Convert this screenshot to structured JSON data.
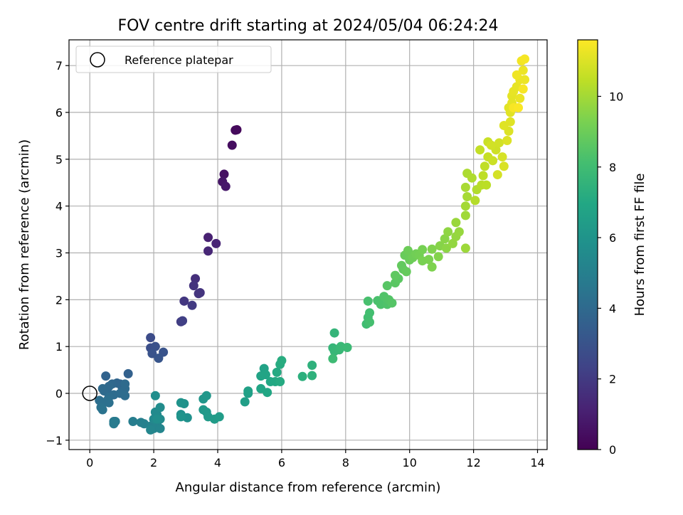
{
  "chart_data": {
    "type": "scatter",
    "title": "FOV centre drift starting at 2024/05/04 06:24:24",
    "xlabel": "Angular distance from reference (arcmin)",
    "ylabel": "Rotation from reference (arcmin)",
    "colorbar_label": "Hours from first FF file",
    "xlim": [
      -0.65,
      14.3
    ],
    "ylim": [
      -1.2,
      7.55
    ],
    "clim": [
      0,
      11.6
    ],
    "colormap": "viridis",
    "grid": true,
    "legend_position": "upper-left",
    "x_ticks": [
      0,
      2,
      4,
      6,
      8,
      10,
      12,
      14
    ],
    "x_tick_labels": [
      "0",
      "2",
      "4",
      "6",
      "8",
      "10",
      "12",
      "14"
    ],
    "y_ticks": [
      -1,
      0,
      1,
      2,
      3,
      4,
      5,
      6,
      7
    ],
    "y_tick_labels": [
      "−1",
      "0",
      "1",
      "2",
      "3",
      "4",
      "5",
      "6",
      "7"
    ],
    "colorbar_ticks": [
      0,
      2,
      4,
      6,
      8,
      10
    ],
    "colorbar_tick_labels": [
      "0",
      "2",
      "4",
      "6",
      "8",
      "10"
    ],
    "reference_point": {
      "label": "Reference platepar",
      "x": 0,
      "y": 0
    },
    "points": [
      [
        4.6,
        5.63,
        0.2
      ],
      [
        4.55,
        5.62,
        0.3
      ],
      [
        4.45,
        5.3,
        0.4
      ],
      [
        4.2,
        4.68,
        0.55
      ],
      [
        4.15,
        4.52,
        0.7
      ],
      [
        4.25,
        4.42,
        0.8
      ],
      [
        3.7,
        3.33,
        1.1
      ],
      [
        3.95,
        3.2,
        1.2
      ],
      [
        3.7,
        3.04,
        1.3
      ],
      [
        3.3,
        2.45,
        1.6
      ],
      [
        3.25,
        2.3,
        1.7
      ],
      [
        3.45,
        2.15,
        1.75
      ],
      [
        3.4,
        2.13,
        1.8
      ],
      [
        2.95,
        1.97,
        1.9
      ],
      [
        3.2,
        1.88,
        2.0
      ],
      [
        2.85,
        1.53,
        2.1
      ],
      [
        2.9,
        1.55,
        2.2
      ],
      [
        1.9,
        1.19,
        2.7
      ],
      [
        1.9,
        0.97,
        2.8
      ],
      [
        2.05,
        1.0,
        2.9
      ],
      [
        1.95,
        0.85,
        3.0
      ],
      [
        2.3,
        0.88,
        3.0
      ],
      [
        2.15,
        0.75,
        3.1
      ],
      [
        1.2,
        0.42,
        3.6
      ],
      [
        0.5,
        0.37,
        3.7
      ],
      [
        0.85,
        0.22,
        3.8
      ],
      [
        0.95,
        0.2,
        3.8
      ],
      [
        1.0,
        0.15,
        3.85
      ],
      [
        0.7,
        0.2,
        3.9
      ],
      [
        0.55,
        0.1,
        3.9
      ],
      [
        0.6,
        0.15,
        3.95
      ],
      [
        0.4,
        0.1,
        4.0
      ],
      [
        0.45,
        0.05,
        4.0
      ],
      [
        1.05,
        0.05,
        4.0
      ],
      [
        1.1,
        0.1,
        4.05
      ],
      [
        1.1,
        0.2,
        4.05
      ],
      [
        0.75,
        -0.03,
        4.1
      ],
      [
        0.95,
        0.0,
        4.1
      ],
      [
        0.6,
        -0.08,
        4.15
      ],
      [
        1.1,
        -0.05,
        4.15
      ],
      [
        0.3,
        -0.15,
        4.2
      ],
      [
        0.55,
        -0.15,
        4.25
      ],
      [
        0.6,
        -0.2,
        4.3
      ],
      [
        0.4,
        -0.22,
        4.3
      ],
      [
        0.35,
        -0.3,
        4.35
      ],
      [
        0.4,
        -0.35,
        4.4
      ],
      [
        0.75,
        -0.6,
        4.7
      ],
      [
        0.8,
        -0.6,
        4.75
      ],
      [
        0.75,
        -0.65,
        4.8
      ],
      [
        1.35,
        -0.6,
        4.9
      ],
      [
        1.6,
        -0.62,
        5.0
      ],
      [
        1.7,
        -0.65,
        5.05
      ],
      [
        1.9,
        -0.7,
        5.1
      ],
      [
        2.1,
        -0.65,
        5.15
      ],
      [
        2.0,
        -0.75,
        5.2
      ],
      [
        2.2,
        -0.75,
        5.25
      ],
      [
        1.9,
        -0.78,
        5.3
      ],
      [
        2.0,
        -0.55,
        5.4
      ],
      [
        2.1,
        -0.45,
        5.45
      ],
      [
        2.05,
        -0.4,
        5.5
      ],
      [
        2.2,
        -0.55,
        5.55
      ],
      [
        2.2,
        -0.3,
        5.6
      ],
      [
        2.05,
        -0.05,
        5.65
      ],
      [
        2.1,
        -0.55,
        5.7
      ],
      [
        2.85,
        -0.45,
        5.8
      ],
      [
        3.05,
        -0.52,
        5.85
      ],
      [
        2.95,
        -0.22,
        5.9
      ],
      [
        2.85,
        -0.2,
        5.95
      ],
      [
        2.85,
        -0.5,
        6.0
      ],
      [
        3.55,
        -0.12,
        6.1
      ],
      [
        3.65,
        -0.05,
        6.15
      ],
      [
        3.55,
        -0.35,
        6.2
      ],
      [
        3.65,
        -0.4,
        6.25
      ],
      [
        3.7,
        -0.5,
        6.3
      ],
      [
        3.9,
        -0.55,
        6.35
      ],
      [
        4.05,
        -0.5,
        6.4
      ],
      [
        4.85,
        -0.18,
        6.5
      ],
      [
        4.95,
        0.0,
        6.55
      ],
      [
        4.95,
        0.05,
        6.6
      ],
      [
        5.45,
        0.53,
        6.7
      ],
      [
        5.35,
        0.37,
        6.75
      ],
      [
        5.5,
        0.4,
        6.8
      ],
      [
        5.35,
        0.1,
        6.85
      ],
      [
        5.55,
        0.02,
        6.9
      ],
      [
        5.65,
        0.25,
        6.95
      ],
      [
        5.8,
        0.25,
        7.0
      ],
      [
        5.85,
        0.45,
        7.05
      ],
      [
        5.95,
        0.25,
        7.1
      ],
      [
        5.95,
        0.62,
        7.15
      ],
      [
        6.0,
        0.7,
        7.2
      ],
      [
        6.65,
        0.36,
        7.35
      ],
      [
        6.95,
        0.6,
        7.4
      ],
      [
        6.95,
        0.38,
        7.45
      ],
      [
        7.65,
        1.29,
        7.6
      ],
      [
        7.6,
        0.97,
        7.65
      ],
      [
        7.65,
        0.9,
        7.7
      ],
      [
        7.8,
        0.93,
        7.75
      ],
      [
        7.85,
        1.0,
        7.8
      ],
      [
        8.05,
        0.98,
        7.85
      ],
      [
        7.6,
        0.74,
        7.9
      ],
      [
        8.65,
        1.48,
        8.0
      ],
      [
        8.7,
        1.62,
        8.05
      ],
      [
        8.75,
        1.72,
        8.1
      ],
      [
        8.75,
        1.52,
        8.15
      ],
      [
        8.7,
        1.97,
        8.2
      ],
      [
        9.0,
        1.98,
        8.25
      ],
      [
        9.1,
        1.9,
        8.3
      ],
      [
        9.3,
        1.9,
        8.35
      ],
      [
        9.2,
        2.07,
        8.4
      ],
      [
        9.35,
        2.0,
        8.45
      ],
      [
        9.45,
        1.93,
        8.5
      ],
      [
        9.3,
        2.3,
        8.55
      ],
      [
        9.55,
        2.36,
        8.6
      ],
      [
        9.65,
        2.45,
        8.65
      ],
      [
        9.55,
        2.52,
        8.7
      ],
      [
        9.8,
        2.65,
        8.75
      ],
      [
        9.75,
        2.73,
        8.8
      ],
      [
        9.9,
        2.6,
        8.85
      ],
      [
        9.85,
        2.95,
        8.9
      ],
      [
        10.0,
        2.85,
        8.95
      ],
      [
        9.95,
        3.05,
        9.0
      ],
      [
        10.1,
        2.9,
        9.05
      ],
      [
        10.2,
        2.98,
        9.1
      ],
      [
        10.3,
        2.95,
        9.15
      ],
      [
        10.4,
        3.07,
        9.2
      ],
      [
        10.4,
        2.83,
        9.25
      ],
      [
        10.6,
        2.86,
        9.3
      ],
      [
        10.7,
        2.7,
        9.35
      ],
      [
        10.7,
        3.08,
        9.4
      ],
      [
        10.9,
        2.92,
        9.45
      ],
      [
        10.95,
        3.15,
        9.5
      ],
      [
        11.1,
        3.3,
        9.55
      ],
      [
        11.15,
        3.1,
        9.6
      ],
      [
        11.2,
        3.45,
        9.65
      ],
      [
        11.35,
        3.2,
        9.7
      ],
      [
        11.45,
        3.35,
        9.75
      ],
      [
        11.55,
        3.45,
        9.8
      ],
      [
        11.45,
        3.65,
        9.85
      ],
      [
        11.75,
        3.1,
        9.9
      ],
      [
        11.75,
        3.8,
        9.95
      ],
      [
        11.75,
        4.0,
        10.0
      ],
      [
        11.8,
        4.2,
        10.05
      ],
      [
        11.75,
        4.4,
        10.1
      ],
      [
        11.8,
        4.7,
        10.15
      ],
      [
        11.95,
        4.6,
        10.2
      ],
      [
        12.1,
        4.35,
        10.25
      ],
      [
        12.05,
        4.12,
        10.3
      ],
      [
        12.25,
        4.45,
        10.35
      ],
      [
        12.4,
        4.45,
        10.4
      ],
      [
        12.3,
        4.65,
        10.45
      ],
      [
        12.35,
        4.85,
        10.5
      ],
      [
        12.2,
        5.2,
        10.55
      ],
      [
        12.45,
        5.05,
        10.6
      ],
      [
        12.45,
        5.37,
        10.65
      ],
      [
        12.6,
        4.97,
        10.7
      ],
      [
        12.7,
        5.2,
        10.75
      ],
      [
        12.8,
        5.35,
        10.8
      ],
      [
        12.55,
        5.3,
        10.8
      ],
      [
        12.75,
        4.67,
        10.85
      ],
      [
        12.9,
        5.05,
        10.9
      ],
      [
        12.95,
        4.85,
        10.95
      ],
      [
        13.05,
        5.4,
        11.0
      ],
      [
        13.1,
        5.6,
        11.0
      ],
      [
        13.15,
        5.8,
        11.05
      ],
      [
        12.95,
        5.72,
        11.05
      ],
      [
        13.1,
        6.1,
        11.1
      ],
      [
        13.15,
        6.0,
        11.1
      ],
      [
        13.2,
        6.2,
        11.15
      ],
      [
        13.2,
        6.35,
        11.15
      ],
      [
        13.25,
        6.45,
        11.2
      ],
      [
        13.35,
        6.55,
        11.2
      ],
      [
        13.45,
        6.3,
        11.25
      ],
      [
        13.45,
        6.7,
        11.25
      ],
      [
        13.6,
        6.7,
        11.3
      ],
      [
        13.55,
        6.9,
        11.3
      ],
      [
        13.35,
        6.8,
        11.35
      ],
      [
        13.5,
        7.1,
        11.4
      ],
      [
        13.6,
        7.14,
        11.45
      ],
      [
        13.25,
        6.1,
        11.5
      ],
      [
        13.55,
        6.5,
        11.5
      ],
      [
        13.4,
        6.1,
        11.55
      ]
    ]
  }
}
